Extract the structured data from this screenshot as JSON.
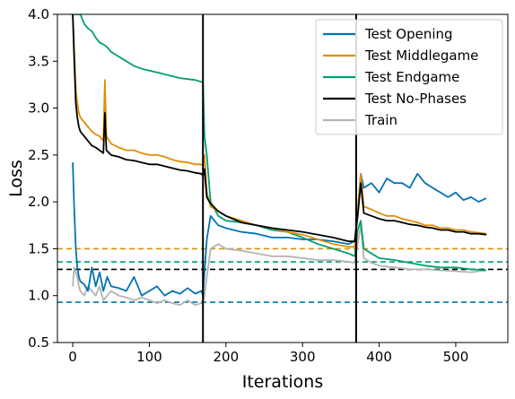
{
  "chart_data": {
    "type": "line",
    "xlabel": "Iterations",
    "ylabel": "Loss",
    "xlim": [
      -20,
      568
    ],
    "ylim": [
      0.5,
      4.0
    ],
    "xticks": [
      "0",
      "100",
      "200",
      "300",
      "400",
      "500"
    ],
    "yticks": [
      "0.5",
      "1.0",
      "1.5",
      "2.0",
      "2.5",
      "3.0",
      "3.5",
      "4.0"
    ],
    "legend_position": "top-right",
    "grid": false,
    "phase_boundaries": [
      170,
      370
    ],
    "series": [
      {
        "name": "Test Opening",
        "color": "#0173b2",
        "baseline": 0.93,
        "x": [
          0,
          2,
          4,
          6,
          8,
          10,
          15,
          20,
          25,
          30,
          35,
          40,
          45,
          50,
          60,
          70,
          80,
          90,
          100,
          110,
          120,
          130,
          140,
          150,
          160,
          168,
          170,
          172,
          175,
          180,
          190,
          200,
          220,
          240,
          260,
          280,
          300,
          320,
          340,
          360,
          368,
          372,
          376,
          380,
          390,
          400,
          410,
          420,
          430,
          440,
          450,
          460,
          470,
          480,
          490,
          500,
          510,
          520,
          530,
          540
        ],
        "y": [
          2.42,
          1.9,
          1.5,
          1.3,
          1.2,
          1.15,
          1.12,
          1.05,
          1.3,
          1.1,
          1.25,
          1.05,
          1.2,
          1.1,
          1.08,
          1.05,
          1.2,
          1.0,
          1.05,
          1.1,
          1.0,
          1.05,
          1.02,
          1.08,
          1.02,
          1.05,
          1.0,
          1.25,
          1.6,
          1.85,
          1.75,
          1.72,
          1.68,
          1.66,
          1.62,
          1.62,
          1.6,
          1.6,
          1.58,
          1.55,
          1.58,
          1.9,
          2.3,
          2.15,
          2.2,
          2.1,
          2.25,
          2.2,
          2.2,
          2.15,
          2.3,
          2.2,
          2.15,
          2.1,
          2.05,
          2.1,
          2.02,
          2.05,
          2.0,
          2.04
        ]
      },
      {
        "name": "Test Middlegame",
        "color": "#de8f05",
        "baseline": 1.5,
        "x": [
          0,
          2,
          4,
          6,
          8,
          10,
          15,
          20,
          25,
          30,
          35,
          40,
          42,
          44,
          50,
          60,
          70,
          80,
          90,
          100,
          110,
          120,
          130,
          140,
          150,
          160,
          168,
          170,
          172,
          175,
          180,
          190,
          200,
          220,
          240,
          260,
          280,
          300,
          320,
          340,
          360,
          368,
          372,
          376,
          380,
          390,
          400,
          410,
          420,
          430,
          440,
          450,
          460,
          470,
          480,
          490,
          500,
          510,
          520,
          530,
          540
        ],
        "y": [
          4.0,
          3.6,
          3.2,
          3.05,
          2.95,
          2.9,
          2.85,
          2.8,
          2.75,
          2.72,
          2.7,
          2.65,
          3.3,
          2.7,
          2.62,
          2.58,
          2.55,
          2.55,
          2.52,
          2.5,
          2.5,
          2.48,
          2.45,
          2.43,
          2.42,
          2.4,
          2.4,
          2.38,
          2.5,
          2.1,
          1.95,
          1.9,
          1.85,
          1.8,
          1.75,
          1.72,
          1.68,
          1.65,
          1.6,
          1.55,
          1.52,
          1.52,
          1.9,
          2.3,
          1.95,
          1.92,
          1.88,
          1.85,
          1.85,
          1.82,
          1.8,
          1.78,
          1.75,
          1.75,
          1.72,
          1.72,
          1.7,
          1.7,
          1.68,
          1.67,
          1.66
        ]
      },
      {
        "name": "Test Endgame",
        "color": "#029e73",
        "baseline": 1.36,
        "x": [
          0,
          5,
          10,
          15,
          20,
          25,
          30,
          35,
          40,
          45,
          50,
          60,
          70,
          80,
          90,
          100,
          110,
          120,
          130,
          140,
          150,
          160,
          168,
          170,
          172,
          175,
          180,
          190,
          200,
          220,
          240,
          260,
          280,
          300,
          320,
          340,
          360,
          368,
          372,
          376,
          380,
          390,
          400,
          420,
          440,
          460,
          480,
          500,
          520,
          540
        ],
        "y": [
          4.0,
          4.0,
          4.0,
          3.9,
          3.85,
          3.82,
          3.75,
          3.7,
          3.68,
          3.65,
          3.6,
          3.55,
          3.5,
          3.45,
          3.42,
          3.4,
          3.38,
          3.36,
          3.34,
          3.32,
          3.31,
          3.3,
          3.28,
          3.28,
          2.7,
          2.5,
          2.0,
          1.85,
          1.8,
          1.78,
          1.75,
          1.7,
          1.68,
          1.62,
          1.55,
          1.5,
          1.45,
          1.42,
          1.7,
          1.8,
          1.5,
          1.45,
          1.4,
          1.38,
          1.35,
          1.32,
          1.3,
          1.3,
          1.28,
          1.27
        ]
      },
      {
        "name": "Test No-Phases",
        "color": "#000000",
        "baseline": 1.28,
        "x": [
          0,
          2,
          4,
          6,
          8,
          10,
          15,
          20,
          25,
          30,
          35,
          40,
          42,
          44,
          50,
          60,
          70,
          80,
          90,
          100,
          110,
          120,
          130,
          140,
          150,
          160,
          168,
          170,
          172,
          175,
          180,
          190,
          200,
          220,
          240,
          260,
          280,
          300,
          320,
          340,
          360,
          368,
          372,
          376,
          380,
          390,
          400,
          410,
          420,
          430,
          440,
          450,
          460,
          470,
          480,
          490,
          500,
          510,
          520,
          530,
          540
        ],
        "y": [
          4.0,
          3.5,
          3.05,
          2.9,
          2.8,
          2.75,
          2.7,
          2.65,
          2.6,
          2.58,
          2.55,
          2.52,
          2.95,
          2.55,
          2.5,
          2.48,
          2.45,
          2.44,
          2.42,
          2.4,
          2.4,
          2.38,
          2.36,
          2.34,
          2.33,
          2.31,
          2.3,
          2.28,
          2.35,
          2.05,
          1.98,
          1.9,
          1.85,
          1.78,
          1.75,
          1.72,
          1.7,
          1.68,
          1.65,
          1.62,
          1.58,
          1.58,
          1.85,
          2.2,
          1.88,
          1.85,
          1.82,
          1.8,
          1.8,
          1.78,
          1.76,
          1.75,
          1.73,
          1.72,
          1.7,
          1.7,
          1.68,
          1.68,
          1.66,
          1.66,
          1.65
        ]
      },
      {
        "name": "Train",
        "color": "#b3b3b3",
        "x": [
          0,
          2,
          4,
          6,
          8,
          10,
          15,
          20,
          25,
          30,
          35,
          40,
          45,
          50,
          60,
          70,
          80,
          90,
          100,
          110,
          120,
          130,
          140,
          150,
          160,
          168,
          170,
          172,
          175,
          180,
          190,
          200,
          220,
          240,
          260,
          280,
          300,
          320,
          340,
          360,
          368,
          372,
          376,
          380,
          390,
          400,
          420,
          440,
          460,
          480,
          500,
          520,
          540
        ],
        "y": [
          1.1,
          1.3,
          1.25,
          1.2,
          1.1,
          1.05,
          1.0,
          1.1,
          1.05,
          1.0,
          1.1,
          0.95,
          1.0,
          1.05,
          1.0,
          0.98,
          0.95,
          0.98,
          0.95,
          0.92,
          0.95,
          0.92,
          0.9,
          0.95,
          0.9,
          0.92,
          0.92,
          1.0,
          1.2,
          1.5,
          1.55,
          1.5,
          1.48,
          1.45,
          1.42,
          1.42,
          1.4,
          1.38,
          1.38,
          1.36,
          1.35,
          1.55,
          1.75,
          1.4,
          1.35,
          1.32,
          1.3,
          1.28,
          1.28,
          1.27,
          1.26,
          1.25,
          1.27
        ]
      }
    ]
  }
}
